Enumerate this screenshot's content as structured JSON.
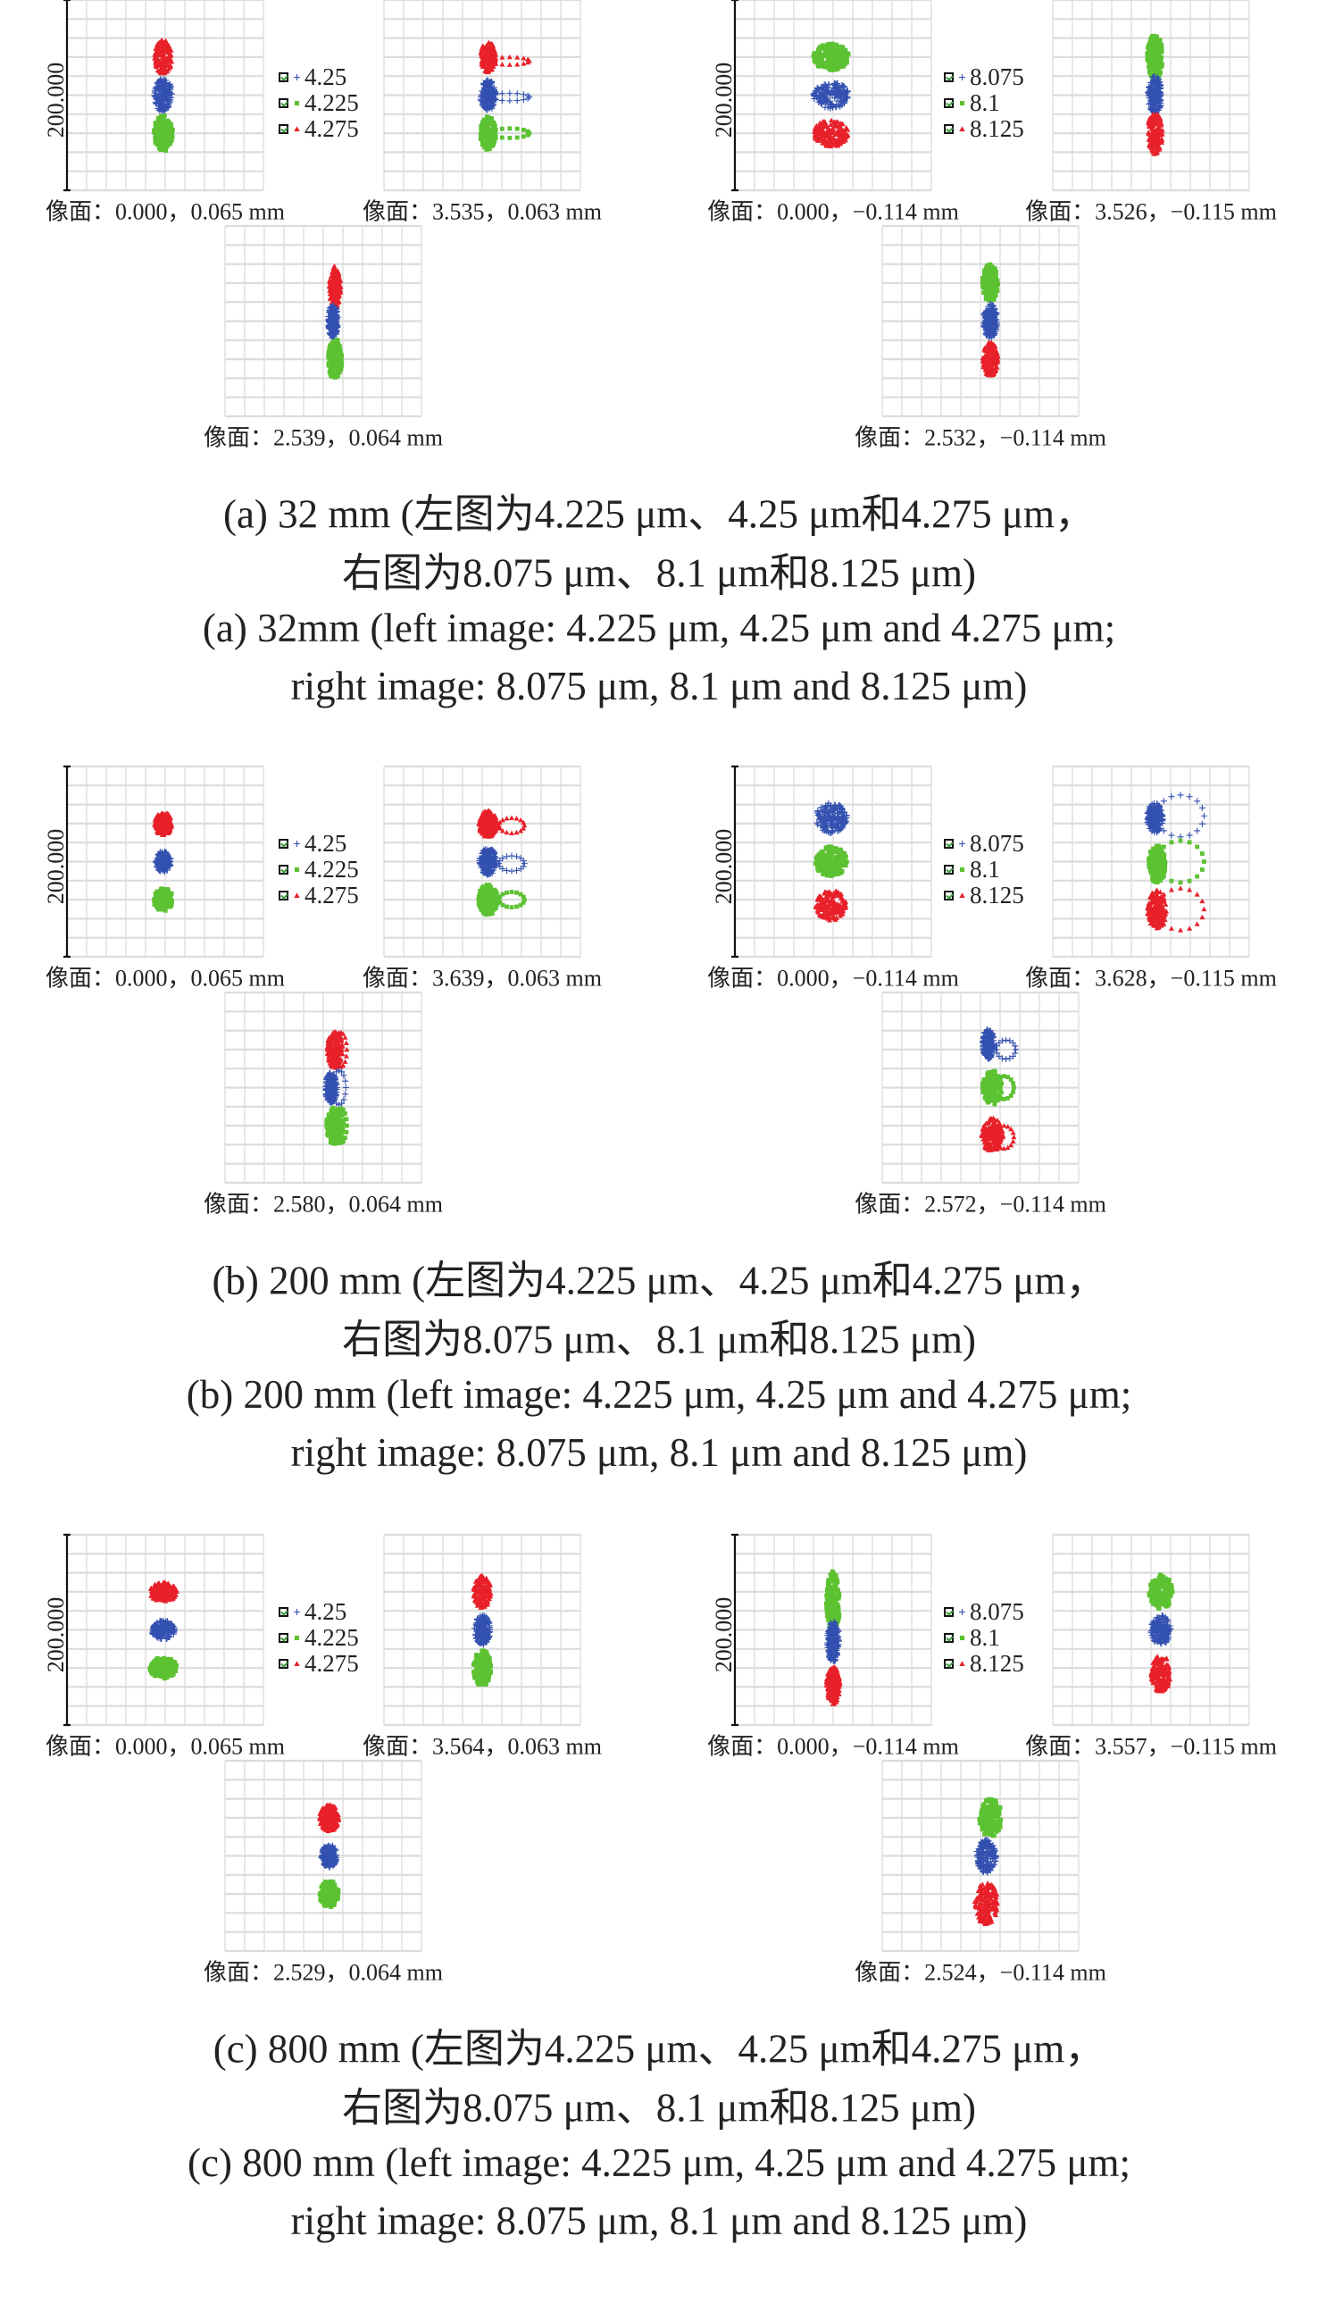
{
  "colors": {
    "red": "#e8202a",
    "blue": "#3350b0",
    "green": "#5cc232",
    "grid": "#dcdcdc",
    "axis": "#111111"
  },
  "legend_left": [
    {
      "label": "4.25",
      "marker": "plus",
      "color": "blue"
    },
    {
      "label": "4.225",
      "marker": "square",
      "color": "green"
    },
    {
      "label": "4.275",
      "marker": "triangle",
      "color": "red"
    }
  ],
  "legend_right": [
    {
      "label": "8.075",
      "marker": "plus",
      "color": "blue"
    },
    {
      "label": "8.1",
      "marker": "square",
      "color": "green"
    },
    {
      "label": "8.125",
      "marker": "triangle",
      "color": "red"
    }
  ],
  "rows": [
    {
      "axis_label": "200.000",
      "panels": [
        {
          "label": "像面：0.000，0.065 mm"
        },
        {
          "label": "像面：3.535，0.063 mm"
        },
        {
          "label": "像面：0.000，−0.114 mm"
        },
        {
          "label": "像面：3.526，−0.115 mm"
        },
        {
          "label": "像面：2.539，0.064 mm"
        },
        {
          "label": "像面：2.532，−0.114 mm"
        }
      ],
      "caption": {
        "zh_line1": "(a) 32 mm (左图为4.225 μm、4.25 μm和4.275 μm，",
        "zh_line2": "右图为8.075 μm、8.1 μm和8.125 μm)",
        "en_line1": "(a) 32mm (left image: 4.225 μm, 4.25 μm and 4.275 μm;",
        "en_line2": "right image: 8.075 μm, 8.1 μm and 8.125 μm)"
      }
    },
    {
      "axis_label": "200.000",
      "panels": [
        {
          "label": "像面：0.000，0.065 mm"
        },
        {
          "label": "像面：3.639，0.063 mm"
        },
        {
          "label": "像面：0.000，−0.114 mm"
        },
        {
          "label": "像面：3.628，−0.115 mm"
        },
        {
          "label": "像面：2.580，0.064 mm"
        },
        {
          "label": "像面：2.572，−0.114 mm"
        }
      ],
      "caption": {
        "zh_line1": "(b) 200 mm (左图为4.225 μm、4.25 μm和4.275 μm，",
        "zh_line2": "右图为8.075 μm、8.1 μm和8.125 μm)",
        "en_line1": "(b) 200 mm (left image: 4.225 μm, 4.25 μm and 4.275 μm;",
        "en_line2": "right image: 8.075 μm, 8.1 μm and 8.125 μm)"
      }
    },
    {
      "axis_label": "200.000",
      "panels": [
        {
          "label": "像面：0.000，0.065 mm"
        },
        {
          "label": "像面：3.564，0.063 mm"
        },
        {
          "label": "像面：0.000，−0.114 mm"
        },
        {
          "label": "像面：3.557，−0.115 mm"
        },
        {
          "label": "像面：2.529，0.064 mm"
        },
        {
          "label": "像面：2.524，−0.114 mm"
        }
      ],
      "caption": {
        "zh_line1": "(c) 800 mm (左图为4.225 μm、4.25 μm和4.275 μm，",
        "zh_line2": "右图为8.075 μm、8.1 μm和8.125 μm)",
        "en_line1": "(c) 800 mm (left image: 4.225 μm, 4.25 μm and 4.275 μm;",
        "en_line2": "right image: 8.075 μm, 8.1 μm and 8.125 μm)"
      }
    }
  ]
}
